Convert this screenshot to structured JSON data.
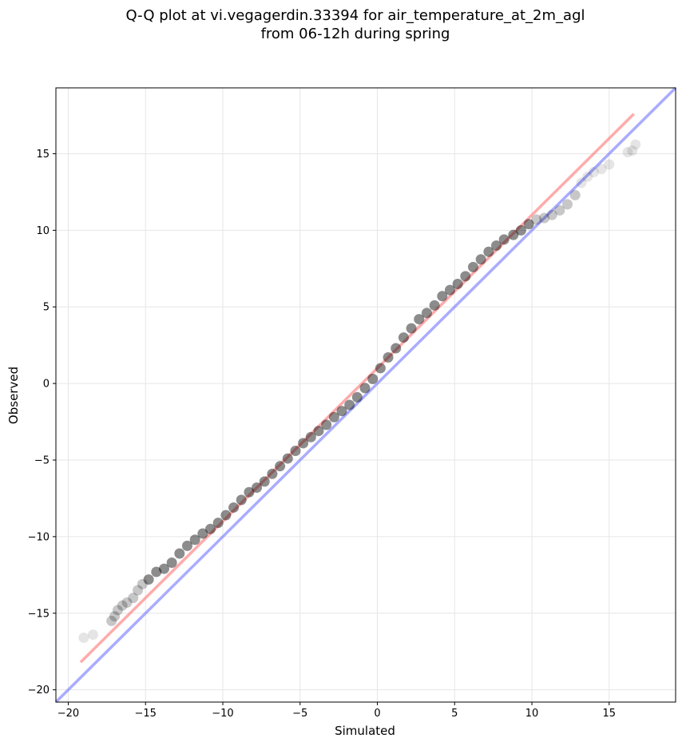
{
  "chart_data": {
    "type": "scatter",
    "title": "Q-Q plot at vi.vegagerdin.33394 for air_temperature_at_2m_agl",
    "subtitle": "from 06-12h during spring",
    "xlabel": "Simulated",
    "ylabel": "Observed",
    "xlim": [
      -20.8,
      19.3
    ],
    "ylim": [
      -20.8,
      19.3
    ],
    "x_ticks": [
      -20,
      -15,
      -10,
      -5,
      0,
      5,
      10,
      15
    ],
    "y_ticks": [
      -20,
      -15,
      -10,
      -5,
      0,
      5,
      10,
      15
    ],
    "grid": true,
    "legend": false,
    "colors": {
      "points": "#000000",
      "fit_line": "#ff6666",
      "identity_line": "#6f74ff",
      "grid": "#e6e6e6"
    },
    "fit_line": {
      "x": [
        -19.2,
        16.6
      ],
      "y": [
        -18.2,
        17.6
      ]
    },
    "identity_line": {
      "x": [
        -20.8,
        19.3
      ],
      "y": [
        -20.8,
        19.3
      ]
    },
    "quantile_points": {
      "x": [
        -19.0,
        -18.4,
        -17.2,
        -17.0,
        -16.8,
        -16.5,
        -16.2,
        -15.8,
        -15.5,
        -15.2,
        -14.8,
        -14.3,
        -13.8,
        -13.3,
        -12.8,
        -12.3,
        -11.8,
        -11.3,
        -10.8,
        -10.3,
        -9.8,
        -9.3,
        -8.8,
        -8.3,
        -7.8,
        -7.3,
        -6.8,
        -6.3,
        -5.8,
        -5.3,
        -4.8,
        -4.3,
        -3.8,
        -3.3,
        -2.8,
        -2.3,
        -1.8,
        -1.3,
        -0.8,
        -0.3,
        0.2,
        0.7,
        1.2,
        1.7,
        2.2,
        2.7,
        3.2,
        3.7,
        4.2,
        4.7,
        5.2,
        5.7,
        6.2,
        6.7,
        7.2,
        7.7,
        8.2,
        8.8,
        9.3,
        9.8,
        10.3,
        10.8,
        11.3,
        11.8,
        12.3,
        12.8,
        13.2,
        13.6,
        14.0,
        14.5,
        15.0,
        16.2,
        16.5,
        16.7
      ],
      "y": [
        -16.6,
        -16.4,
        -15.5,
        -15.2,
        -14.8,
        -14.5,
        -14.3,
        -14.0,
        -13.5,
        -13.1,
        -12.8,
        -12.3,
        -12.1,
        -11.7,
        -11.1,
        -10.6,
        -10.2,
        -9.8,
        -9.5,
        -9.1,
        -8.6,
        -8.1,
        -7.6,
        -7.1,
        -6.8,
        -6.4,
        -5.9,
        -5.4,
        -4.9,
        -4.4,
        -3.9,
        -3.5,
        -3.1,
        -2.7,
        -2.2,
        -1.8,
        -1.4,
        -0.9,
        -0.3,
        0.3,
        1.0,
        1.7,
        2.3,
        3.0,
        3.6,
        4.2,
        4.6,
        5.1,
        5.7,
        6.1,
        6.5,
        7.0,
        7.6,
        8.1,
        8.6,
        9.0,
        9.4,
        9.7,
        10.0,
        10.4,
        10.7,
        10.8,
        11.0,
        11.3,
        11.7,
        12.3,
        13.1,
        13.5,
        13.8,
        14.0,
        14.3,
        15.1,
        15.2,
        15.6
      ]
    }
  }
}
